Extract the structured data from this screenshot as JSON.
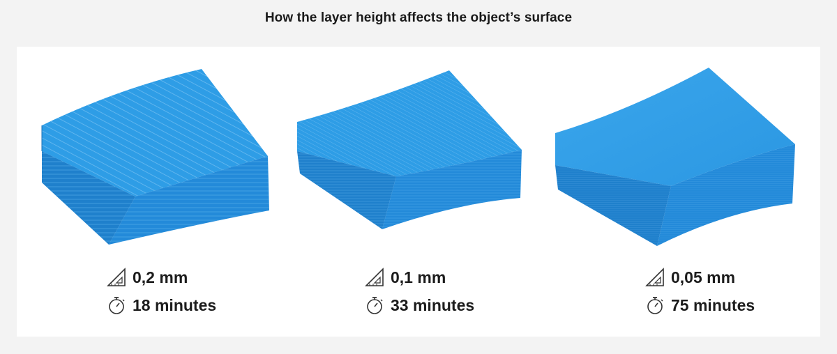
{
  "title": "How the layer height affects the object’s surface",
  "colors": {
    "background": "#f3f3f3",
    "panel": "#ffffff",
    "block_top": "#2d9be4",
    "block_front": "#2189d8",
    "block_side": "#1e7fcb",
    "text": "#1c1c1c"
  },
  "samples": [
    {
      "layer_height": "0,2 mm",
      "print_time": "18 minutes",
      "layer_icon": "set-square-icon",
      "time_icon": "stopwatch-icon"
    },
    {
      "layer_height": "0,1 mm",
      "print_time": "33 minutes",
      "layer_icon": "set-square-icon",
      "time_icon": "stopwatch-icon"
    },
    {
      "layer_height": "0,05 mm",
      "print_time": "75 minutes",
      "layer_icon": "set-square-icon",
      "time_icon": "stopwatch-icon"
    }
  ]
}
